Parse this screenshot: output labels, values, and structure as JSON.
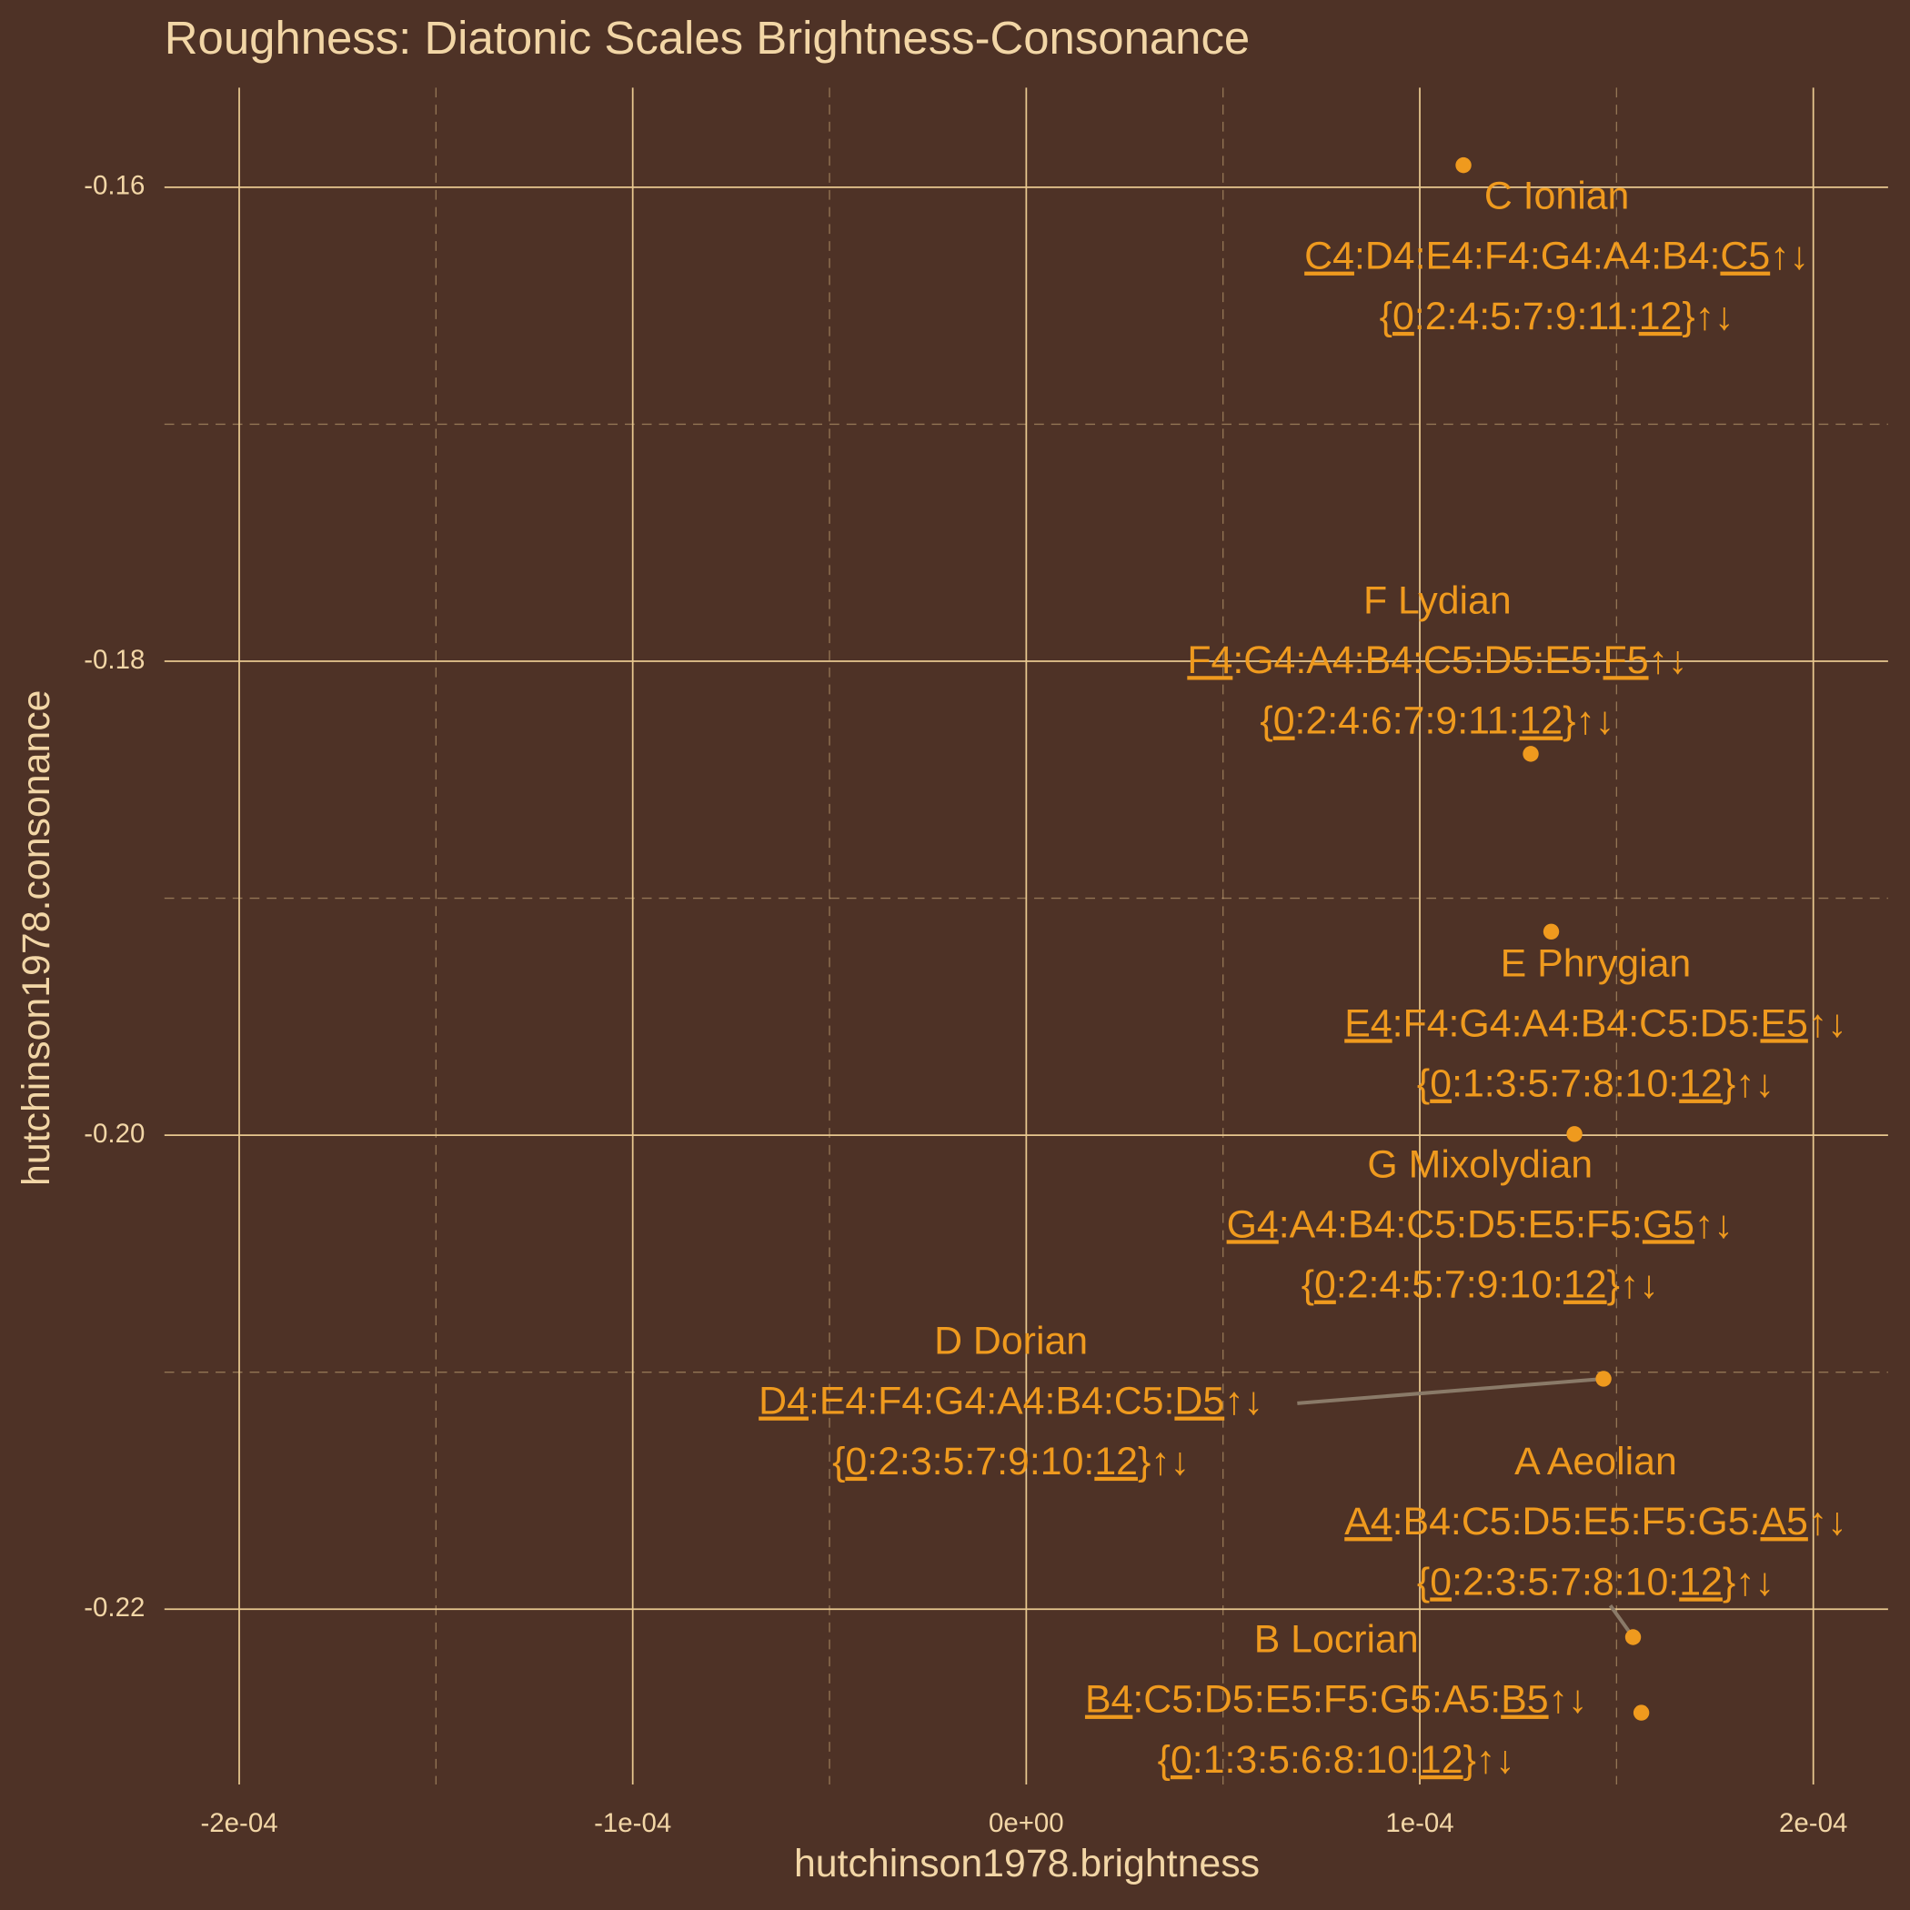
{
  "chart_data": {
    "type": "scatter",
    "title": "Roughness: Diatonic Scales Brightness-Consonance",
    "x_label": "hutchinson1978.brightness",
    "y_label": "hutchinson1978.consonance",
    "xlim": [
      -0.000219,
      0.000219
    ],
    "ylim": [
      -0.2274,
      -0.1558
    ],
    "xticks": [
      {
        "value": -0.0002,
        "label": "-2e-04"
      },
      {
        "value": -0.0001,
        "label": "-1e-04"
      },
      {
        "value": 0,
        "label": "0e+00"
      },
      {
        "value": 0.0001,
        "label": "1e-04"
      },
      {
        "value": 0.0002,
        "label": "2e-04"
      }
    ],
    "yticks": [
      -0.16,
      -0.18,
      {
        "value": -0.2,
        "label": "-0.20"
      },
      -0.22
    ],
    "grid": true,
    "background": "#4e3226",
    "series": [
      {
        "color": "#ef9a1e",
        "x": [
          0.0001111,
          0.0001282,
          0.0001334,
          0.0001393,
          0.0001467,
          0.0001542,
          0.0001563
        ],
        "values": [
          -0.15907,
          -0.18391,
          -0.19141,
          -0.19995,
          -0.21028,
          -0.22118,
          -0.22437
        ],
        "labels": [
          {
            "name": "C Ionian",
            "notes": "C4:D4:E4:F4:G4:A4:B4:C5↑↓",
            "intervals": "{0:2:4:5:7:9:11:12}↑↓"
          },
          {
            "name": "F Lydian",
            "notes": "F4:G4:A4:B4:C5:D5:E5:F5↑↓",
            "intervals": "{0:2:4:6:7:9:11:12}↑↓"
          },
          {
            "name": "E Phrygian",
            "notes": "E4:F4:G4:A4:B4:C5:D5:E5↑↓",
            "intervals": "{0:1:3:5:7:8:10:12}↑↓"
          },
          {
            "name": "G Mixolydian",
            "notes": "G4:A4:B4:C5:D5:E5:F5:G5↑↓",
            "intervals": "{0:2:4:5:7:9:10:12}↑↓"
          },
          {
            "name": "D Dorian",
            "notes": "D4:E4:F4:G4:A4:B4:C5:D5↑↓",
            "intervals": "{0:2:3:5:7:9:10:12}↑↓"
          },
          {
            "name": "A Aeolian",
            "notes": "A4:B4:C5:D5:E5:F5:G5:A5↑↓",
            "intervals": "{0:2:3:5:7:8:10:12}↑↓"
          },
          {
            "name": "B Locrian",
            "notes": "B4:C5:D5:E5:F5:G5:A5:B5↑↓",
            "intervals": "{0:1:3:5:6:8:10:12}↑↓"
          }
        ]
      }
    ]
  }
}
